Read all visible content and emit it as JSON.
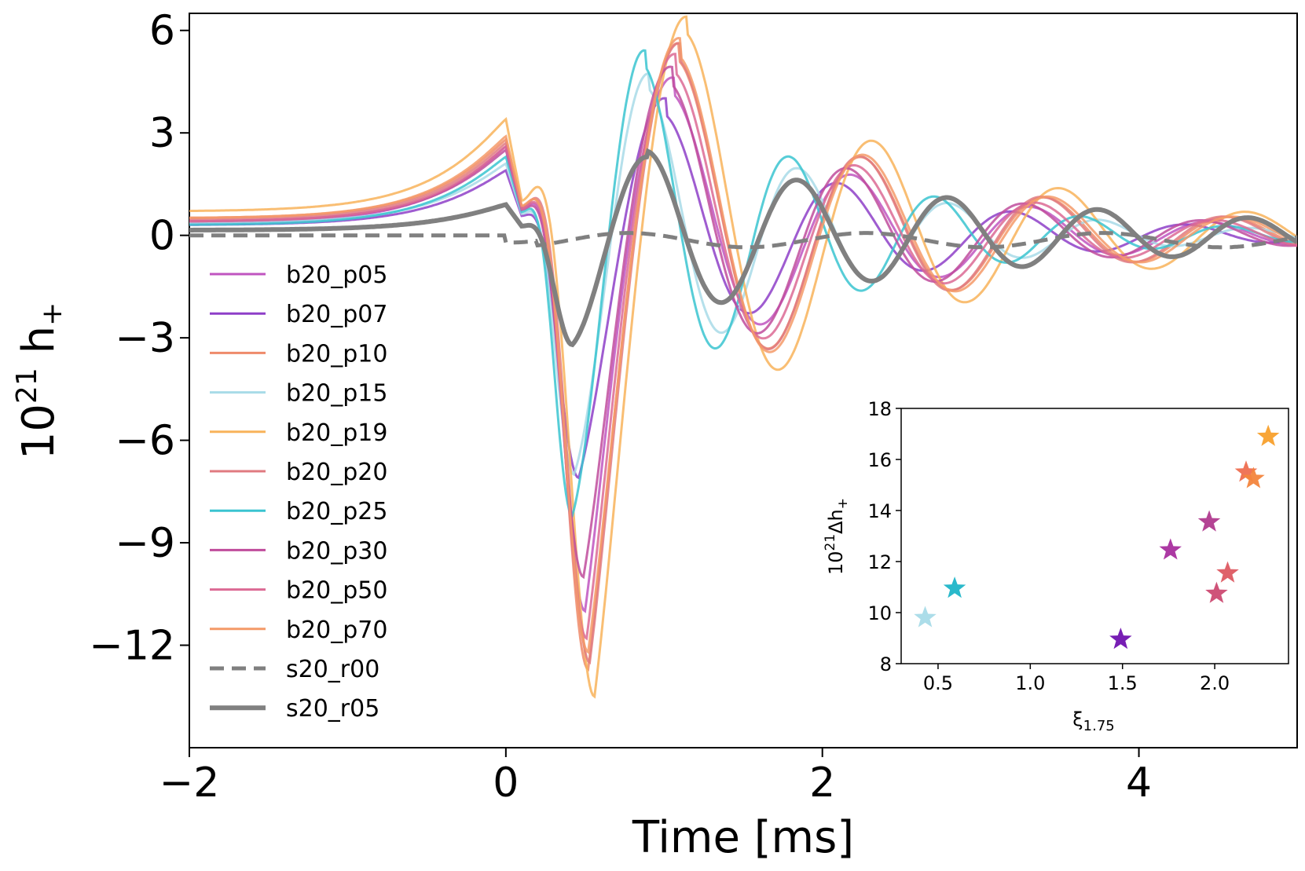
{
  "chart_data": [
    {
      "type": "line",
      "xlabel": "Time [ms]",
      "ylabel_base": "10",
      "ylabel_exp": "21",
      "ylabel_rest": " h",
      "ylabel_sub": "+",
      "xlim": [
        -2,
        5
      ],
      "ylim": [
        -15,
        6.5
      ],
      "xticks": [
        -2,
        0,
        2,
        4
      ],
      "xtick_labels": [
        "−2",
        "0",
        "2",
        "4"
      ],
      "yticks": [
        6,
        3,
        0,
        -3,
        -6,
        -9,
        -12
      ],
      "ytick_labels": [
        "6",
        "3",
        "0",
        "−3",
        "−6",
        "−9",
        "−12"
      ],
      "legend_position": "left",
      "series": [
        {
          "name": "b20_p05",
          "color": "#c055c0",
          "style": "solid",
          "width": 3,
          "a0": 0.35,
          "peak": 2.6,
          "amp": 11.0,
          "amp2": 4.2,
          "t1": 0.5,
          "T": 1.13,
          "tau": 1.5,
          "td": 0.08
        },
        {
          "name": "b20_p07",
          "color": "#8e3fc8",
          "style": "solid",
          "width": 3,
          "a0": 0.3,
          "peak": 1.9,
          "amp": 7.1,
          "amp2": 3.8,
          "t1": 0.46,
          "T": 1.1,
          "tau": 1.4,
          "td": 0.05
        },
        {
          "name": "b20_p10",
          "color": "#ee8a6a",
          "style": "solid",
          "width": 3,
          "a0": 0.5,
          "peak": 2.8,
          "amp": 12.7,
          "amp2": 5.2,
          "t1": 0.52,
          "T": 1.16,
          "tau": 1.6,
          "td": 0.09
        },
        {
          "name": "b20_p15",
          "color": "#a8dbe8",
          "style": "solid",
          "width": 3,
          "a0": 0.35,
          "peak": 2.1,
          "amp": 7.0,
          "amp2": 4.5,
          "t1": 0.43,
          "T": 0.95,
          "tau": 1.3,
          "td": 0.04
        },
        {
          "name": "b20_p19",
          "color": "#f8b35a",
          "style": "solid",
          "width": 3,
          "a0": 0.7,
          "peak": 3.4,
          "amp": 13.5,
          "amp2": 6.0,
          "t1": 0.56,
          "T": 1.18,
          "tau": 1.7,
          "td": 0.12
        },
        {
          "name": "b20_p20",
          "color": "#e07a80",
          "style": "solid",
          "width": 3,
          "a0": 0.45,
          "peak": 2.7,
          "amp": 12.5,
          "amp2": 5.2,
          "t1": 0.53,
          "T": 1.15,
          "tau": 1.6,
          "td": 0.1
        },
        {
          "name": "b20_p25",
          "color": "#3ac4d0",
          "style": "solid",
          "width": 3,
          "a0": 0.3,
          "peak": 2.3,
          "amp": 8.2,
          "amp2": 5.1,
          "t1": 0.42,
          "T": 0.92,
          "tau": 1.3,
          "td": 0.03
        },
        {
          "name": "b20_p30",
          "color": "#c04c9c",
          "style": "solid",
          "width": 3,
          "a0": 0.4,
          "peak": 2.5,
          "amp": 10.0,
          "amp2": 4.6,
          "t1": 0.49,
          "T": 1.12,
          "tau": 1.5,
          "td": 0.07
        },
        {
          "name": "b20_p50",
          "color": "#dc6a94",
          "style": "solid",
          "width": 3,
          "a0": 0.4,
          "peak": 2.6,
          "amp": 11.8,
          "amp2": 4.9,
          "t1": 0.51,
          "T": 1.14,
          "tau": 1.5,
          "td": 0.08
        },
        {
          "name": "b20_p70",
          "color": "#f49a68",
          "style": "solid",
          "width": 3,
          "a0": 0.5,
          "peak": 2.9,
          "amp": 12.2,
          "amp2": 5.4,
          "t1": 0.52,
          "T": 1.17,
          "tau": 1.6,
          "td": 0.1
        },
        {
          "name": "s20_r00",
          "color": "#808080",
          "style": "dashed",
          "width": 5,
          "a0": 0.0,
          "peak": 0.1,
          "amp": 0.35,
          "amp2": 0.35,
          "t1": 0.5,
          "T": 1.5,
          "tau": 6.0,
          "td": 0.0
        },
        {
          "name": "s20_r05",
          "color": "#808080",
          "style": "solid",
          "width": 6,
          "a0": 0.15,
          "peak": 0.9,
          "amp": 3.2,
          "amp2": 2.2,
          "t1": 0.42,
          "T": 0.95,
          "tau": 2.5,
          "td": 0.0
        }
      ]
    },
    {
      "type": "scatter",
      "marker": "star",
      "xlabel_base": "ξ",
      "xlabel_sub": "1.75",
      "ylabel_base": "10",
      "ylabel_exp": "21",
      "ylabel_rest": "Δh",
      "ylabel_sub": "+",
      "xlim": [
        0.3,
        2.4
      ],
      "ylim": [
        8,
        18
      ],
      "xticks": [
        0.5,
        1.0,
        1.5,
        2.0
      ],
      "xtick_labels": [
        "0.5",
        "1.0",
        "1.5",
        "2.0"
      ],
      "yticks": [
        8,
        10,
        12,
        14,
        16,
        18
      ],
      "ytick_labels": [
        "8",
        "10",
        "12",
        "14",
        "16",
        "18"
      ],
      "points": [
        {
          "x": 0.43,
          "y": 9.8,
          "color": "#a8dbe8"
        },
        {
          "x": 0.59,
          "y": 10.95,
          "color": "#1fb5c8"
        },
        {
          "x": 1.49,
          "y": 8.95,
          "color": "#7012b0"
        },
        {
          "x": 1.76,
          "y": 12.45,
          "color": "#a82e9e"
        },
        {
          "x": 1.97,
          "y": 13.55,
          "color": "#b03a8e"
        },
        {
          "x": 2.01,
          "y": 10.75,
          "color": "#cc4a72"
        },
        {
          "x": 2.07,
          "y": 11.55,
          "color": "#dd5a62"
        },
        {
          "x": 2.17,
          "y": 15.5,
          "color": "#ee6e50"
        },
        {
          "x": 2.21,
          "y": 15.25,
          "color": "#f3853d"
        },
        {
          "x": 2.29,
          "y": 16.9,
          "color": "#f8a02c"
        }
      ]
    }
  ]
}
